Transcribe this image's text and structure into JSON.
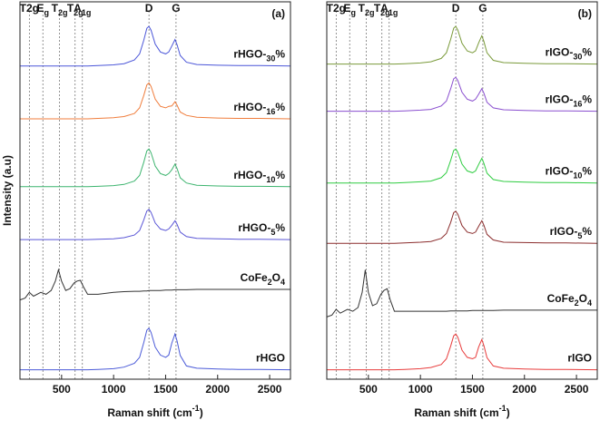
{
  "chart_data": [
    {
      "type": "line",
      "panel_label": "(a)",
      "x_label": "Raman shift (cm-1)",
      "y_label": "Intensity (a.u)",
      "xlim": [
        100,
        2700
      ],
      "ylim": [
        0,
        100
      ],
      "xticks": [
        500,
        1000,
        1500,
        2000,
        2500
      ],
      "annotations": [
        {
          "text": "T2g",
          "x": 190
        },
        {
          "text": "E",
          "sub": "g",
          "x": 320
        },
        {
          "text": "T",
          "sub": "2g",
          "x": 480
        },
        {
          "text": "T",
          "sub": "2g",
          "x": 630
        },
        {
          "text": "A",
          "sub": "1g",
          "x": 700
        },
        {
          "text": "D",
          "x": 1340
        },
        {
          "text": "G",
          "x": 1600
        }
      ],
      "x": [
        100,
        150,
        190,
        230,
        300,
        350,
        400,
        440,
        470,
        500,
        540,
        580,
        620,
        650,
        680,
        710,
        750,
        850,
        1000,
        1100,
        1200,
        1250,
        1290,
        1320,
        1340,
        1360,
        1400,
        1450,
        1500,
        1530,
        1560,
        1590,
        1610,
        1640,
        1700,
        1800,
        2000,
        2200,
        2400,
        2700
      ],
      "series": [
        {
          "name": "rHGO-30%",
          "color": "#4a55d8",
          "values": [
            83,
            83,
            83,
            83,
            83,
            83,
            83,
            83,
            83,
            83,
            83,
            83,
            83,
            83,
            83,
            83,
            83,
            83.1,
            83.3,
            83.6,
            84.6,
            86.2,
            89.8,
            93,
            93.5,
            92.5,
            88.8,
            86.7,
            86.2,
            86.7,
            88.3,
            90,
            88.6,
            85.8,
            84,
            83.4,
            83.2,
            83.1,
            83.1,
            83
          ]
        },
        {
          "name": "rHGO-16%",
          "color": "#f07d3c",
          "values": [
            69,
            69,
            69,
            69,
            69,
            69,
            69,
            69,
            69,
            69,
            69,
            69,
            69,
            69,
            69,
            69,
            69,
            69.1,
            69.3,
            69.6,
            70.4,
            71.9,
            75.2,
            78,
            78.5,
            77.6,
            74.2,
            72.3,
            71.9,
            72.3,
            72.4,
            73.5,
            72.6,
            70.8,
            69.9,
            69.4,
            69.2,
            69.1,
            69.1,
            69
          ]
        },
        {
          "name": "rHGO-10%",
          "color": "#3cb46e",
          "values": [
            51,
            51,
            51,
            51,
            51,
            51,
            51,
            51,
            51,
            51,
            51,
            51,
            51,
            51,
            51,
            51,
            51,
            51.1,
            51.3,
            51.6,
            52.5,
            54,
            57.5,
            60.5,
            61,
            60,
            56.5,
            54.5,
            54,
            54.5,
            55.5,
            57,
            55.8,
            53.4,
            52,
            51.4,
            51.2,
            51.1,
            51.1,
            51
          ]
        },
        {
          "name": "rHGO-5%",
          "color": "#5a56d6",
          "values": [
            37,
            37,
            37,
            37,
            37,
            37,
            37,
            37,
            37,
            37,
            37,
            37,
            37,
            37,
            37,
            37,
            37,
            37.1,
            37.2,
            37.5,
            38.2,
            39.4,
            42.2,
            44.6,
            45,
            44.2,
            41.4,
            39.8,
            39.4,
            39.8,
            40.8,
            42,
            41,
            39,
            37.8,
            37.3,
            37.2,
            37.1,
            37.1,
            37
          ]
        },
        {
          "name": "CoFe2O4",
          "color": "#333333",
          "values": [
            21,
            21.5,
            23,
            22,
            23,
            22.5,
            23.5,
            26,
            29,
            26,
            23.5,
            24,
            25.5,
            26,
            26.2,
            24.5,
            22.5,
            22.5,
            23,
            23.2,
            23.3,
            23.3,
            23.4,
            23.4,
            23.5,
            23.5,
            23.5,
            23.5,
            23.6,
            23.6,
            23.6,
            23.7,
            23.7,
            23.7,
            23.7,
            23.8,
            23.8,
            23.8,
            23.8,
            23.8
          ]
        },
        {
          "name": "rHGO",
          "color": "#4a5ad8",
          "values": [
            2.5,
            2.5,
            2.5,
            2.5,
            2.5,
            2.5,
            2.5,
            2.5,
            2.5,
            2.5,
            2.5,
            2.5,
            2.5,
            2.5,
            2.5,
            2.5,
            2.5,
            2.6,
            2.8,
            3.2,
            4.2,
            5.8,
            9.7,
            13,
            13.5,
            12.4,
            8.5,
            6.4,
            5.8,
            6.4,
            9.6,
            12,
            10.1,
            6.3,
            3.5,
            2.9,
            2.7,
            2.6,
            2.6,
            2.5
          ]
        }
      ]
    },
    {
      "type": "line",
      "panel_label": "(b)",
      "x_label": "Raman shift (cm-1)",
      "xlim": [
        100,
        2700
      ],
      "ylim": [
        0,
        100
      ],
      "xticks": [
        500,
        1000,
        1500,
        2000,
        2500
      ],
      "annotations": [
        {
          "text": "T2g",
          "x": 190
        },
        {
          "text": "E",
          "sub": "g",
          "x": 320
        },
        {
          "text": "T",
          "sub": "2g",
          "x": 480
        },
        {
          "text": "T",
          "sub": "2g",
          "x": 630
        },
        {
          "text": "A",
          "sub": "1g",
          "x": 700
        },
        {
          "text": "D",
          "x": 1340
        },
        {
          "text": "G",
          "x": 1600
        }
      ],
      "x": [
        100,
        150,
        190,
        230,
        300,
        350,
        400,
        440,
        470,
        500,
        540,
        580,
        620,
        650,
        680,
        710,
        750,
        850,
        1000,
        1100,
        1200,
        1250,
        1290,
        1320,
        1340,
        1360,
        1400,
        1450,
        1500,
        1530,
        1560,
        1590,
        1610,
        1640,
        1700,
        1800,
        2000,
        2200,
        2400,
        2700
      ],
      "series": [
        {
          "name": "rIGO-30%",
          "color": "#7a9a3a",
          "values": [
            83.5,
            83.5,
            83.5,
            83.5,
            83.5,
            83.5,
            83.5,
            83.5,
            83.5,
            83.5,
            83.5,
            83.5,
            83.5,
            83.5,
            83.5,
            83.5,
            83.5,
            83.6,
            83.8,
            84.1,
            85,
            86.5,
            90,
            93,
            93.5,
            92.5,
            89,
            87,
            86.5,
            87,
            89.1,
            91,
            89.5,
            86.5,
            84.5,
            83.9,
            83.7,
            83.6,
            83.6,
            83.5
          ]
        },
        {
          "name": "rIGO-16%",
          "color": "#8a4fcf",
          "values": [
            71,
            71,
            71,
            71,
            71,
            71,
            71,
            71,
            71,
            71,
            71,
            71,
            71,
            71,
            71,
            71,
            71,
            71.1,
            71.3,
            71.5,
            72.4,
            73.7,
            76.9,
            79.6,
            80,
            79.1,
            76,
            74.2,
            73.7,
            74.2,
            75.5,
            77,
            75.8,
            73.4,
            71.9,
            71.4,
            71.2,
            71.1,
            71.1,
            71
          ]
        },
        {
          "name": "rIGO-10%",
          "color": "#2ecc40",
          "values": [
            52,
            52,
            52,
            52,
            52,
            52,
            52,
            52,
            52,
            52,
            52,
            52,
            52,
            52,
            52,
            52,
            52,
            52.1,
            52.3,
            52.5,
            53.4,
            54.7,
            57.9,
            60.6,
            61,
            60.1,
            57,
            55.2,
            54.7,
            55.2,
            56.9,
            58.5,
            57.2,
            54.6,
            52.9,
            52.4,
            52.2,
            52.1,
            52.1,
            52
          ]
        },
        {
          "name": "rIGO-5%",
          "color": "#8b2d2d",
          "values": [
            36,
            36,
            36,
            36,
            36,
            36,
            36,
            36,
            36,
            36,
            36,
            36,
            36,
            36,
            36,
            36,
            36,
            36.1,
            36.3,
            36.5,
            37.3,
            38.6,
            41.5,
            44.1,
            44.5,
            43.7,
            40.7,
            39,
            38.6,
            39,
            40.5,
            42,
            40.8,
            38.4,
            36.9,
            36.3,
            36.2,
            36.1,
            36.1,
            36
          ]
        },
        {
          "name": "CoFe2O4",
          "color": "#333333",
          "values": [
            16.5,
            17,
            18.5,
            17.5,
            18.5,
            18,
            19,
            23,
            29,
            23,
            19.5,
            20,
            22.5,
            23.5,
            24,
            21,
            18,
            18,
            18,
            18,
            18,
            18,
            18.1,
            18.1,
            18.1,
            18.1,
            18.1,
            18.1,
            18.2,
            18.2,
            18.2,
            18.2,
            18.2,
            18.2,
            18.2,
            18.3,
            18.3,
            18.3,
            18.3,
            18.3
          ]
        },
        {
          "name": "rIGO",
          "color": "#e83c3c",
          "values": [
            2.5,
            2.5,
            2.5,
            2.5,
            2.5,
            2.5,
            2.5,
            2.5,
            2.5,
            2.5,
            2.5,
            2.5,
            2.5,
            2.5,
            2.5,
            2.5,
            2.5,
            2.6,
            2.8,
            3.1,
            3.9,
            5.4,
            8.7,
            11.5,
            12,
            11.1,
            7.7,
            5.8,
            5.4,
            5.8,
            8.5,
            10.5,
            8.9,
            5.7,
            3.5,
            2.9,
            2.7,
            2.6,
            2.6,
            2.5
          ]
        }
      ]
    }
  ]
}
